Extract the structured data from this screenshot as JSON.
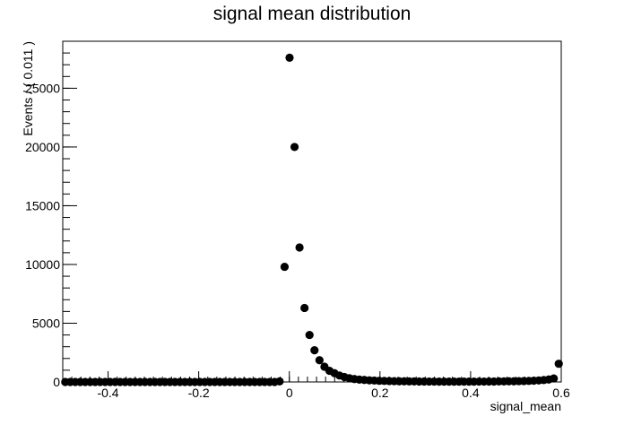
{
  "chart_data": {
    "type": "scatter",
    "title": "signal mean distribution",
    "xlabel": "signal_mean",
    "ylabel": "Events / ( 0.011 )",
    "xlim": [
      -0.5,
      0.6
    ],
    "ylim": [
      0,
      29000
    ],
    "grid": false,
    "marker_color": "#000000",
    "x_ticks": [
      {
        "value": -0.4,
        "label": "-0.4"
      },
      {
        "value": -0.2,
        "label": "-0.2"
      },
      {
        "value": 0,
        "label": "0"
      },
      {
        "value": 0.2,
        "label": "0.2"
      },
      {
        "value": 0.4,
        "label": "0.4"
      },
      {
        "value": 0.6,
        "label": "0.6"
      }
    ],
    "y_ticks": [
      {
        "value": 0,
        "label": "0"
      },
      {
        "value": 5000,
        "label": "5000"
      },
      {
        "value": 10000,
        "label": "10000"
      },
      {
        "value": 15000,
        "label": "15000"
      },
      {
        "value": 20000,
        "label": "20000"
      },
      {
        "value": 25000,
        "label": "25000"
      }
    ],
    "series": [
      {
        "points": [
          [
            -0.4945,
            0
          ],
          [
            -0.4835,
            0
          ],
          [
            -0.4725,
            0
          ],
          [
            -0.4615,
            0
          ],
          [
            -0.4505,
            0
          ],
          [
            -0.4395,
            0
          ],
          [
            -0.4285,
            0
          ],
          [
            -0.4175,
            0
          ],
          [
            -0.4065,
            0
          ],
          [
            -0.3955,
            0
          ],
          [
            -0.3845,
            0
          ],
          [
            -0.3735,
            0
          ],
          [
            -0.3625,
            0
          ],
          [
            -0.3515,
            0
          ],
          [
            -0.3405,
            0
          ],
          [
            -0.3295,
            0
          ],
          [
            -0.3185,
            0
          ],
          [
            -0.3075,
            0
          ],
          [
            -0.2965,
            0
          ],
          [
            -0.2855,
            0
          ],
          [
            -0.2745,
            0
          ],
          [
            -0.2635,
            0
          ],
          [
            -0.2525,
            0
          ],
          [
            -0.2415,
            0
          ],
          [
            -0.2305,
            0
          ],
          [
            -0.2195,
            0
          ],
          [
            -0.2085,
            0
          ],
          [
            -0.1975,
            0
          ],
          [
            -0.1865,
            0
          ],
          [
            -0.1755,
            0
          ],
          [
            -0.1645,
            0
          ],
          [
            -0.1535,
            0
          ],
          [
            -0.1425,
            0
          ],
          [
            -0.1315,
            0
          ],
          [
            -0.1205,
            0
          ],
          [
            -0.1095,
            0
          ],
          [
            -0.0985,
            0
          ],
          [
            -0.0875,
            0
          ],
          [
            -0.0765,
            0
          ],
          [
            -0.0655,
            0
          ],
          [
            -0.0545,
            0
          ],
          [
            -0.0435,
            0
          ],
          [
            -0.0325,
            0
          ],
          [
            -0.0215,
            50
          ],
          [
            -0.0105,
            9800
          ],
          [
            0.0005,
            27600
          ],
          [
            0.0115,
            20000
          ],
          [
            0.0225,
            11450
          ],
          [
            0.0335,
            6300
          ],
          [
            0.0445,
            4000
          ],
          [
            0.0555,
            2700
          ],
          [
            0.0665,
            1850
          ],
          [
            0.0775,
            1300
          ],
          [
            0.0885,
            950
          ],
          [
            0.0995,
            750
          ],
          [
            0.1105,
            550
          ],
          [
            0.1215,
            420
          ],
          [
            0.1325,
            320
          ],
          [
            0.1435,
            250
          ],
          [
            0.1545,
            200
          ],
          [
            0.1655,
            170
          ],
          [
            0.1765,
            140
          ],
          [
            0.1875,
            120
          ],
          [
            0.1985,
            100
          ],
          [
            0.2095,
            90
          ],
          [
            0.2205,
            80
          ],
          [
            0.2315,
            70
          ],
          [
            0.2425,
            60
          ],
          [
            0.2535,
            55
          ],
          [
            0.2645,
            50
          ],
          [
            0.2755,
            45
          ],
          [
            0.2865,
            40
          ],
          [
            0.2975,
            40
          ],
          [
            0.3085,
            35
          ],
          [
            0.3195,
            35
          ],
          [
            0.3305,
            30
          ],
          [
            0.3415,
            30
          ],
          [
            0.3525,
            30
          ],
          [
            0.3635,
            30
          ],
          [
            0.3745,
            30
          ],
          [
            0.3855,
            30
          ],
          [
            0.3965,
            30
          ],
          [
            0.4075,
            30
          ],
          [
            0.4185,
            35
          ],
          [
            0.4295,
            35
          ],
          [
            0.4405,
            40
          ],
          [
            0.4515,
            40
          ],
          [
            0.4625,
            45
          ],
          [
            0.4735,
            50
          ],
          [
            0.4845,
            55
          ],
          [
            0.4955,
            60
          ],
          [
            0.5065,
            70
          ],
          [
            0.5175,
            80
          ],
          [
            0.5285,
            90
          ],
          [
            0.5395,
            110
          ],
          [
            0.5505,
            130
          ],
          [
            0.5615,
            160
          ],
          [
            0.5725,
            210
          ],
          [
            0.5835,
            300
          ],
          [
            0.5945,
            1550
          ]
        ]
      }
    ]
  }
}
